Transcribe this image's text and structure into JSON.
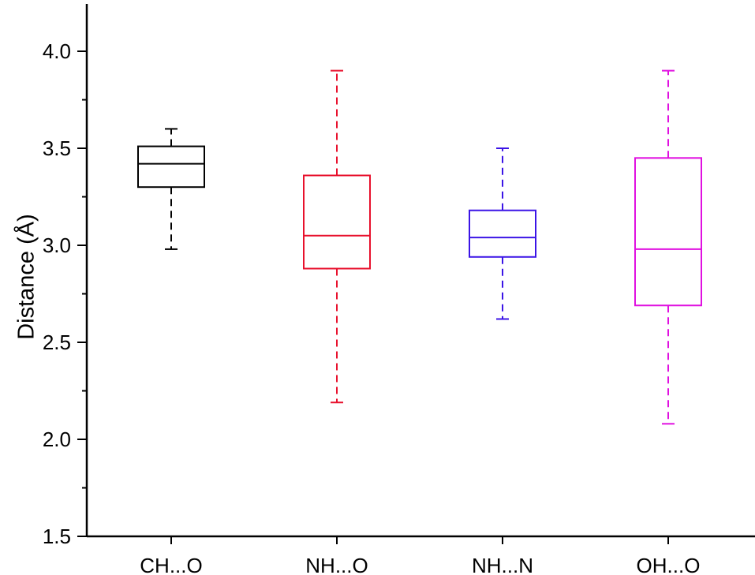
{
  "chart_data": {
    "type": "box",
    "title": "",
    "xlabel": "",
    "ylabel": "Distance (Å)",
    "ylim": [
      1.5,
      4.3
    ],
    "yticks": [
      1.5,
      2.0,
      2.5,
      3.0,
      3.5,
      4.0
    ],
    "ytick_labels": [
      "1.5",
      "2.0",
      "2.5",
      "3.0",
      "3.5",
      "4.0"
    ],
    "grid": false,
    "legend": "none",
    "categories": [
      "CH...O",
      "NH...O",
      "NH...N",
      "OH...O"
    ],
    "boxes": [
      {
        "category": "CH...O",
        "min": 2.98,
        "q1": 3.3,
        "median": 3.42,
        "q3": 3.51,
        "max": 3.6,
        "color": "#000000"
      },
      {
        "category": "NH...O",
        "min": 2.19,
        "q1": 2.88,
        "median": 3.05,
        "q3": 3.36,
        "max": 3.9,
        "color": "#e8112d"
      },
      {
        "category": "NH...N",
        "min": 2.62,
        "q1": 2.94,
        "median": 3.04,
        "q3": 3.18,
        "max": 3.5,
        "color": "#3b14e6"
      },
      {
        "category": "OH...O",
        "min": 2.08,
        "q1": 2.69,
        "median": 2.98,
        "q3": 3.45,
        "max": 3.9,
        "color": "#e010e0"
      }
    ]
  }
}
